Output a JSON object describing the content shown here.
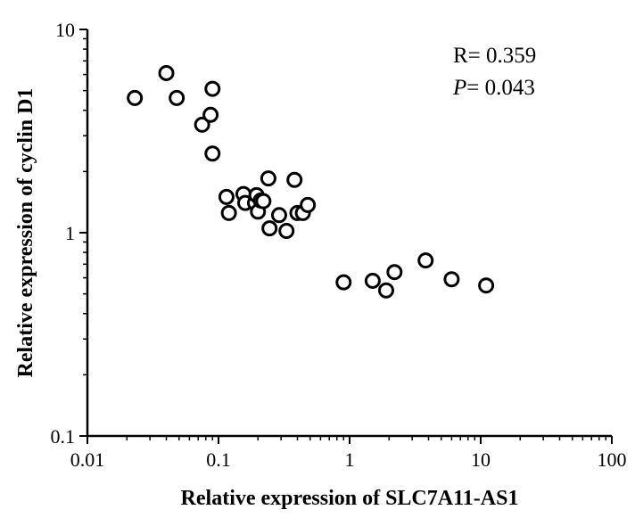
{
  "chart_data": {
    "type": "scatter",
    "xlabel": "Relative expression of SLC7A11-AS1",
    "ylabel": "Relative expression of cyclin D1",
    "xscale": "log",
    "yscale": "log",
    "xlim": [
      0.01,
      100
    ],
    "ylim": [
      0.1,
      10
    ],
    "xticks": [
      "0.01",
      "0.1",
      "1",
      "10",
      "100"
    ],
    "yticks": [
      "0.1",
      "1",
      "10"
    ],
    "grid": false,
    "annotations": {
      "r_label": "R= 0.359",
      "p_symbol": "P",
      "p_value": "= 0.043"
    },
    "points": [
      {
        "x": 0.023,
        "y": 4.6
      },
      {
        "x": 0.04,
        "y": 6.1
      },
      {
        "x": 0.048,
        "y": 4.6
      },
      {
        "x": 0.075,
        "y": 3.4
      },
      {
        "x": 0.087,
        "y": 3.8
      },
      {
        "x": 0.09,
        "y": 5.1
      },
      {
        "x": 0.09,
        "y": 2.45
      },
      {
        "x": 0.115,
        "y": 1.5
      },
      {
        "x": 0.12,
        "y": 1.25
      },
      {
        "x": 0.155,
        "y": 1.55
      },
      {
        "x": 0.16,
        "y": 1.4
      },
      {
        "x": 0.19,
        "y": 1.4
      },
      {
        "x": 0.195,
        "y": 1.53
      },
      {
        "x": 0.2,
        "y": 1.27
      },
      {
        "x": 0.21,
        "y": 1.44
      },
      {
        "x": 0.22,
        "y": 1.43
      },
      {
        "x": 0.24,
        "y": 1.85
      },
      {
        "x": 0.245,
        "y": 1.05
      },
      {
        "x": 0.29,
        "y": 1.22
      },
      {
        "x": 0.33,
        "y": 1.02
      },
      {
        "x": 0.38,
        "y": 1.82
      },
      {
        "x": 0.4,
        "y": 1.25
      },
      {
        "x": 0.44,
        "y": 1.25
      },
      {
        "x": 0.48,
        "y": 1.37
      },
      {
        "x": 0.9,
        "y": 0.57
      },
      {
        "x": 1.5,
        "y": 0.58
      },
      {
        "x": 1.9,
        "y": 0.52
      },
      {
        "x": 2.2,
        "y": 0.64
      },
      {
        "x": 3.8,
        "y": 0.73
      },
      {
        "x": 6.0,
        "y": 0.59
      },
      {
        "x": 11.0,
        "y": 0.55
      }
    ]
  }
}
